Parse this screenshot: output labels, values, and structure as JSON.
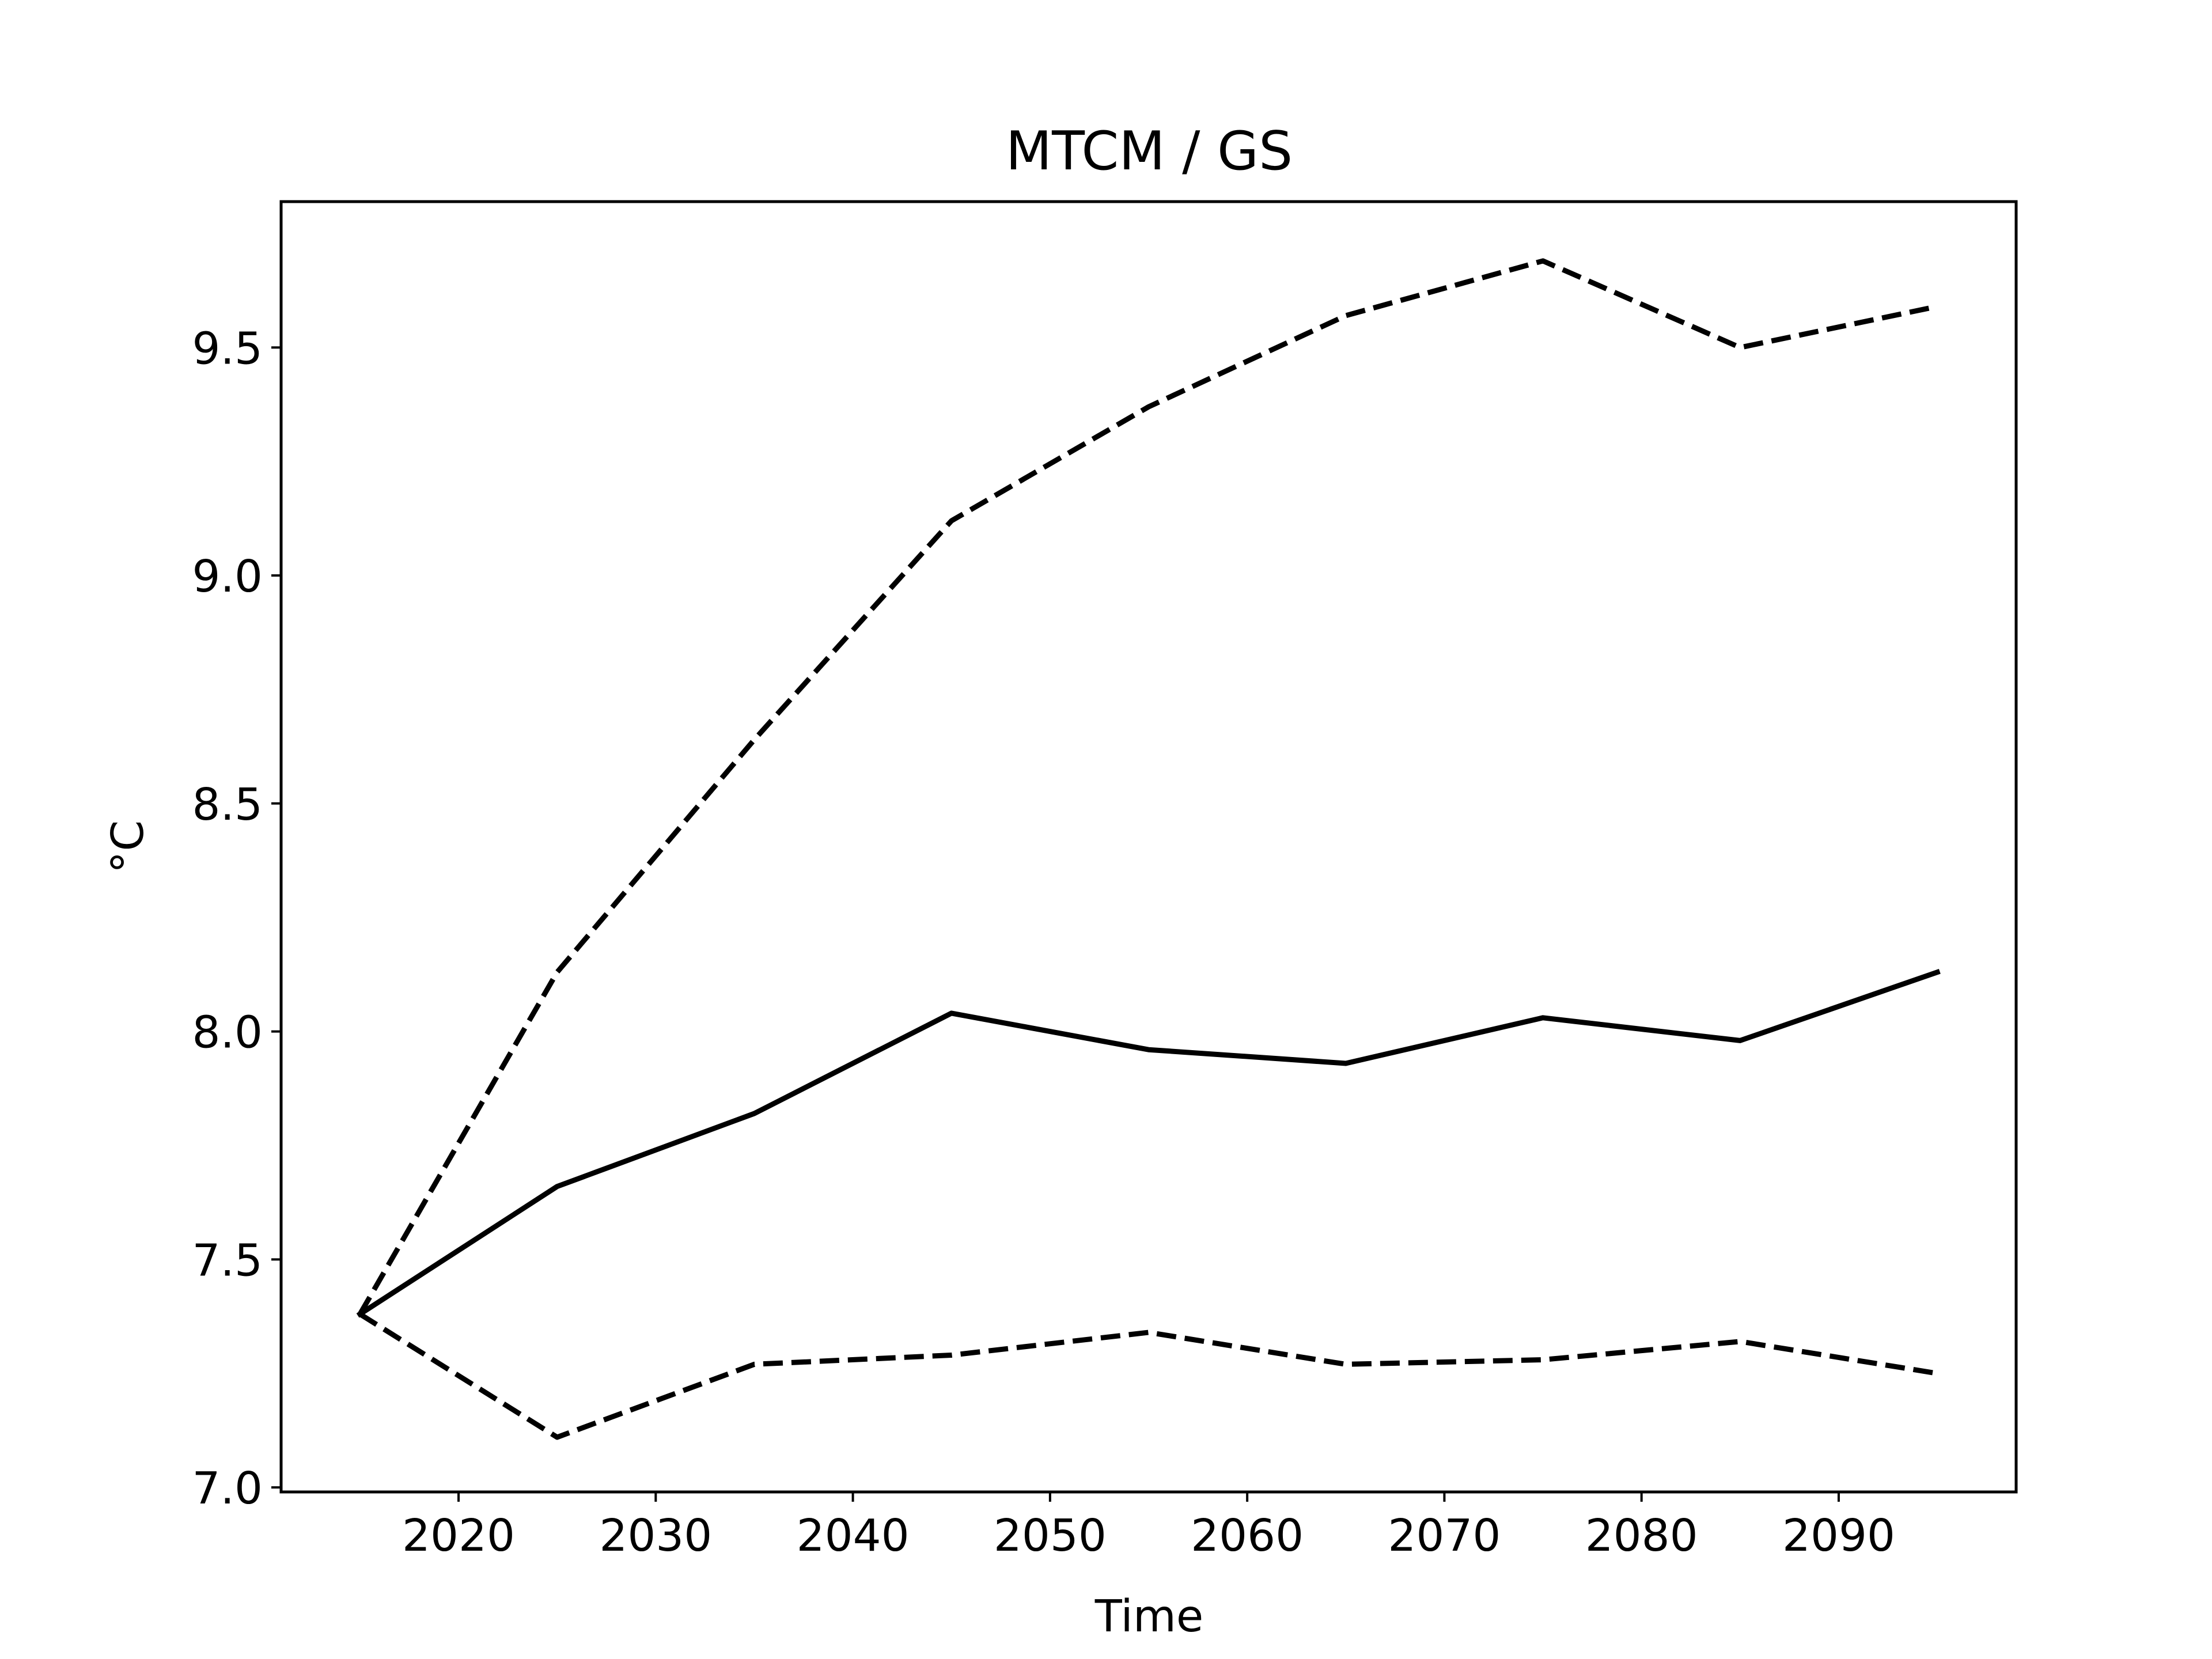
{
  "chart_data": {
    "type": "line",
    "title": "MTCM / GS",
    "xlabel": "Time",
    "ylabel": "°C",
    "xlim": [
      2011,
      2099
    ],
    "ylim": [
      6.99,
      9.82
    ],
    "x_ticks": [
      2020,
      2030,
      2040,
      2050,
      2060,
      2070,
      2080,
      2090
    ],
    "y_ticks": [
      7.0,
      7.5,
      8.0,
      8.5,
      9.0,
      9.5
    ],
    "y_tick_labels": [
      "7.0",
      "7.5",
      "8.0",
      "8.5",
      "9.0",
      "9.5"
    ],
    "grid": false,
    "legend": "none",
    "x": [
      2015,
      2025,
      2035,
      2045,
      2055,
      2065,
      2075,
      2085,
      2095
    ],
    "series": [
      {
        "style": "solid",
        "color": "#000000",
        "values": [
          7.38,
          7.66,
          7.82,
          8.04,
          7.96,
          7.93,
          8.03,
          7.98,
          8.13
        ]
      },
      {
        "style": "dashed",
        "color": "#000000",
        "values": [
          7.38,
          8.13,
          8.64,
          9.12,
          9.37,
          9.57,
          9.69,
          9.5,
          9.59
        ]
      },
      {
        "style": "dashed",
        "color": "#000000",
        "values": [
          7.38,
          7.11,
          7.27,
          7.29,
          7.34,
          7.27,
          7.28,
          7.32,
          7.25
        ]
      }
    ]
  }
}
